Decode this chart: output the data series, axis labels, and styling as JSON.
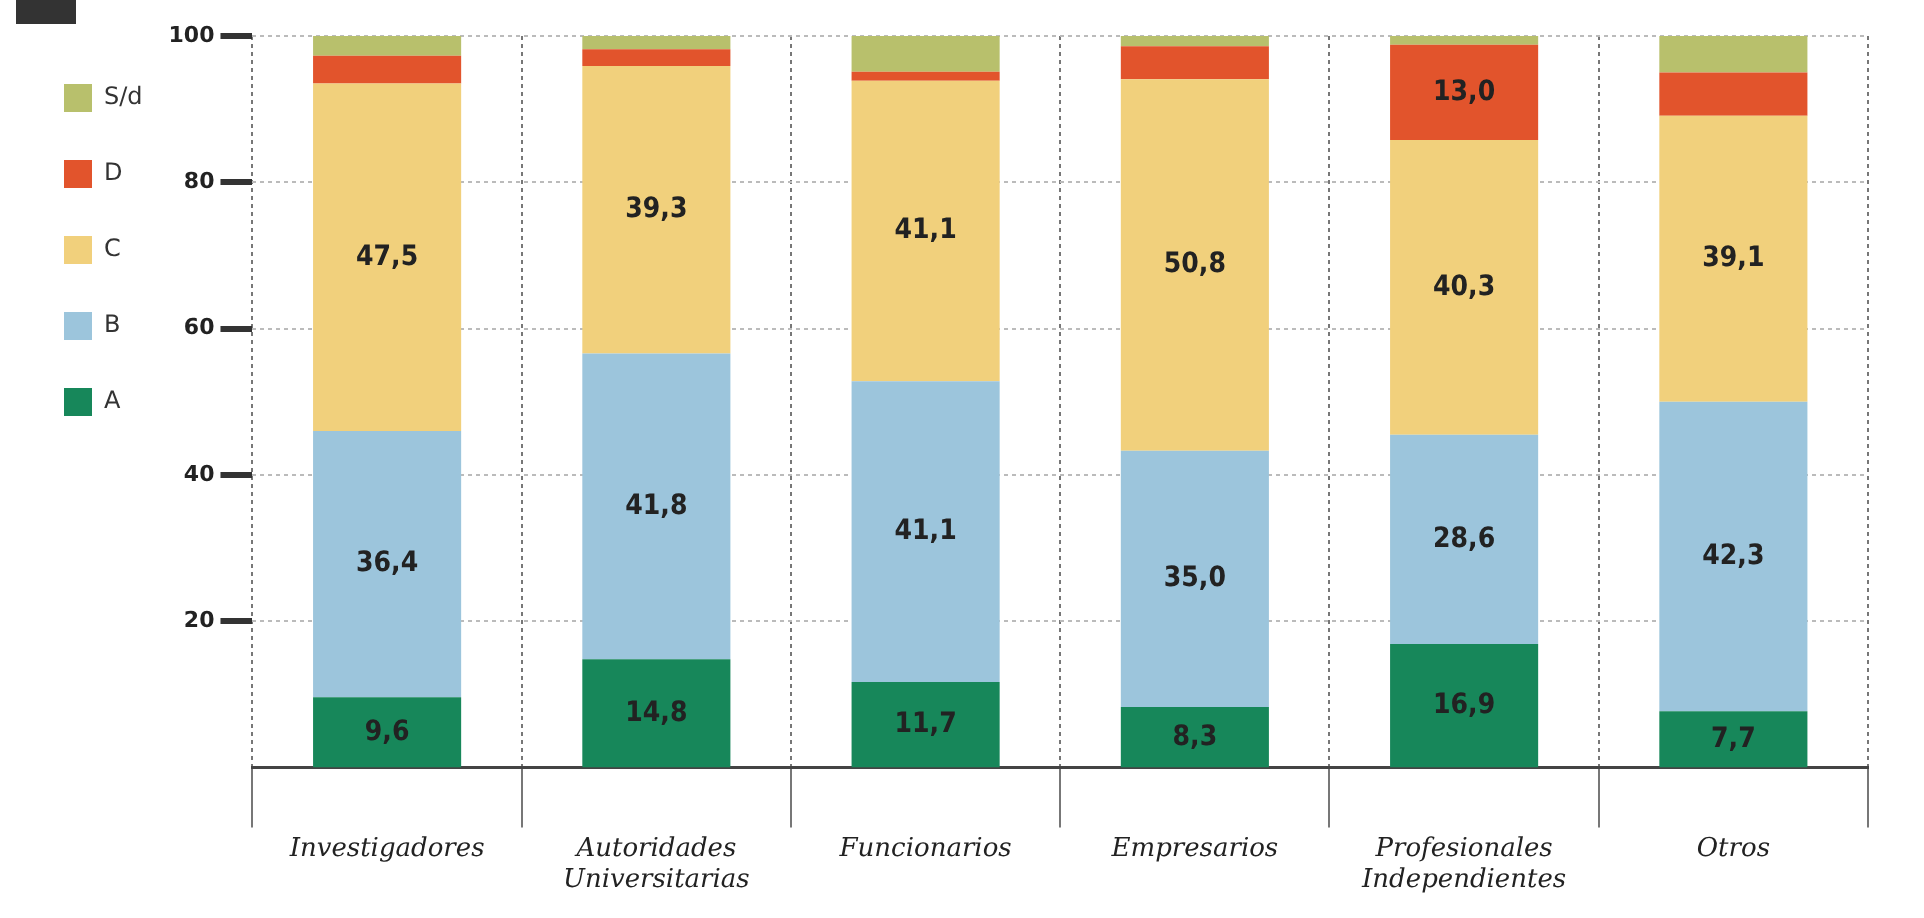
{
  "chart_data": {
    "type": "bar",
    "stacked": true,
    "categories": [
      "Investigadores",
      "Autoridades Universitarias",
      "Funcionarios",
      "Empresarios",
      "Profesionales Independientes",
      "Otros"
    ],
    "series": [
      {
        "name": "A",
        "color": "#17875a",
        "values": [
          9.6,
          14.8,
          11.7,
          8.3,
          16.9,
          7.7
        ],
        "value_labels": [
          "9,6",
          "14,8",
          "11,7",
          "8,3",
          "16,9",
          "7,7"
        ]
      },
      {
        "name": "B",
        "color": "#9cc5dc",
        "values": [
          36.4,
          41.8,
          41.1,
          35.0,
          28.6,
          42.3
        ],
        "value_labels": [
          "36,4",
          "41,8",
          "41,1",
          "35,0",
          "28,6",
          "42,3"
        ]
      },
      {
        "name": "C",
        "color": "#f1d07c",
        "values": [
          47.5,
          39.3,
          41.1,
          50.8,
          40.3,
          39.1
        ],
        "value_labels": [
          "47,5",
          "39,3",
          "41,1",
          "50,8",
          "40,3",
          "39,1"
        ]
      },
      {
        "name": "D",
        "color": "#e2542c",
        "values": [
          3.8,
          2.3,
          1.2,
          4.5,
          13.0,
          5.9
        ],
        "value_labels": [
          null,
          null,
          null,
          null,
          "13,0",
          null
        ]
      },
      {
        "name": "S/d",
        "color": "#b8c06c",
        "values": [
          2.7,
          1.8,
          4.9,
          1.4,
          1.2,
          5.0
        ]
      }
    ],
    "ylim": [
      0,
      100
    ],
    "yticks": [
      20,
      40,
      60,
      80,
      100
    ],
    "grid": true,
    "legend": "left"
  }
}
